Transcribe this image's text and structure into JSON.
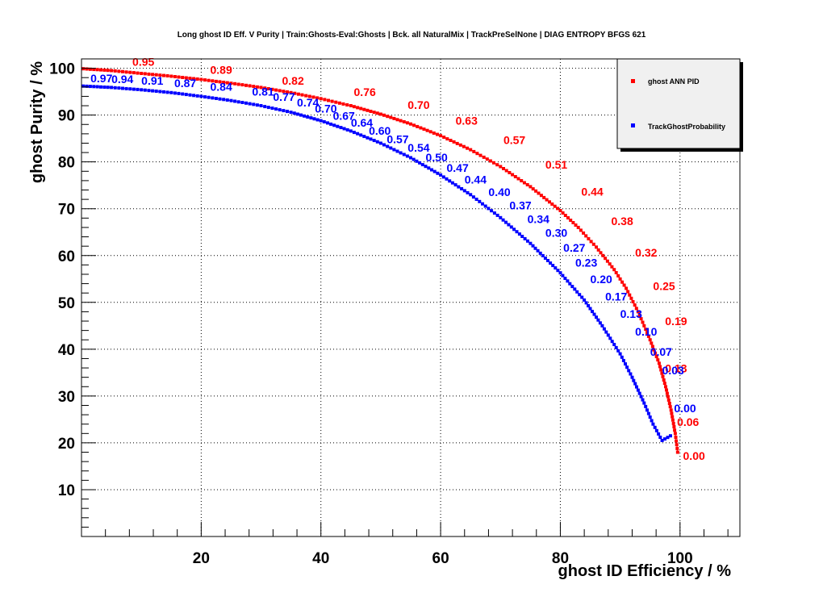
{
  "chart_data": {
    "type": "line",
    "title": "Long ghost ID Eff. V Purity | Train:Ghosts-Eval:Ghosts | Bck. all NaturalMix | TrackPreSelNone | DIAG ENTROPY BFGS 621",
    "xlabel": "ghost ID Efficiency / %",
    "ylabel": "ghost Purity / %",
    "xlim": [
      0,
      110
    ],
    "ylim": [
      0,
      102
    ],
    "xticks": [
      20,
      40,
      60,
      80,
      100
    ],
    "yticks": [
      10,
      20,
      30,
      40,
      50,
      60,
      70,
      80,
      90,
      100
    ],
    "grid": true,
    "legend_position": "top-right",
    "series": [
      {
        "name": "ghost ANN PID",
        "color": "#ff0000",
        "points": [
          [
            0.3,
            99.9
          ],
          [
            5,
            99.5
          ],
          [
            10,
            98.9
          ],
          [
            15,
            98.3
          ],
          [
            20,
            97.6
          ],
          [
            25,
            96.8
          ],
          [
            30,
            95.9
          ],
          [
            35,
            94.8
          ],
          [
            40,
            93.5
          ],
          [
            45,
            92.0
          ],
          [
            50,
            90.2
          ],
          [
            55,
            88.1
          ],
          [
            60,
            85.6
          ],
          [
            65,
            82.6
          ],
          [
            70,
            79.0
          ],
          [
            75,
            74.7
          ],
          [
            80,
            69.6
          ],
          [
            83,
            66.0
          ],
          [
            86,
            61.8
          ],
          [
            89,
            57.0
          ],
          [
            91,
            53.0
          ],
          [
            93,
            48.0
          ],
          [
            95,
            42.0
          ],
          [
            96.5,
            37.0
          ],
          [
            97.6,
            32.0
          ],
          [
            98.5,
            27.0
          ],
          [
            99.2,
            22.0
          ],
          [
            99.6,
            18.0
          ]
        ],
        "labels": [
          {
            "x": 8.5,
            "y": 100.5,
            "text": "0.95"
          },
          {
            "x": 21.5,
            "y": 98.8,
            "text": "0.89"
          },
          {
            "x": 33.5,
            "y": 96.5,
            "text": "0.82"
          },
          {
            "x": 45.5,
            "y": 94.1,
            "text": "0.76"
          },
          {
            "x": 54.5,
            "y": 91.3,
            "text": "0.70"
          },
          {
            "x": 62.5,
            "y": 88.0,
            "text": "0.63"
          },
          {
            "x": 70.5,
            "y": 83.8,
            "text": "0.57"
          },
          {
            "x": 77.5,
            "y": 78.6,
            "text": "0.51"
          },
          {
            "x": 83.5,
            "y": 72.8,
            "text": "0.44"
          },
          {
            "x": 88.5,
            "y": 66.5,
            "text": "0.38"
          },
          {
            "x": 92.5,
            "y": 59.8,
            "text": "0.32"
          },
          {
            "x": 95.5,
            "y": 52.6,
            "text": "0.25"
          },
          {
            "x": 97.5,
            "y": 45.1,
            "text": "0.19"
          },
          {
            "x": 97.5,
            "y": 35.1,
            "text": "0.13"
          },
          {
            "x": 99.5,
            "y": 23.6,
            "text": "0.06"
          },
          {
            "x": 100.5,
            "y": 16.4,
            "text": "0.00"
          }
        ]
      },
      {
        "name": "TrackGhostProbability",
        "color": "#0000ff",
        "points": [
          [
            0.3,
            96.2
          ],
          [
            5,
            95.9
          ],
          [
            10,
            95.4
          ],
          [
            15,
            94.8
          ],
          [
            20,
            94.0
          ],
          [
            25,
            93.1
          ],
          [
            30,
            92.0
          ],
          [
            35,
            90.6
          ],
          [
            40,
            88.8
          ],
          [
            45,
            86.6
          ],
          [
            50,
            84.0
          ],
          [
            55,
            80.9
          ],
          [
            60,
            77.2
          ],
          [
            65,
            73.0
          ],
          [
            70,
            68.1
          ],
          [
            75,
            62.6
          ],
          [
            80,
            56.3
          ],
          [
            84,
            50.5
          ],
          [
            87,
            45.0
          ],
          [
            90,
            39.0
          ],
          [
            92,
            34.0
          ],
          [
            94,
            28.5
          ],
          [
            95.5,
            24.0
          ],
          [
            97,
            20.5
          ],
          [
            98.4,
            21.5
          ]
        ],
        "labels": [
          {
            "x": 1.5,
            "y": 97.0,
            "text": "0.97"
          },
          {
            "x": 5.0,
            "y": 96.8,
            "text": "0.94"
          },
          {
            "x": 10.0,
            "y": 96.5,
            "text": "0.91"
          },
          {
            "x": 15.5,
            "y": 96.0,
            "text": "0.87"
          },
          {
            "x": 21.5,
            "y": 95.2,
            "text": "0.84"
          },
          {
            "x": 28.5,
            "y": 94.2,
            "text": "0.81"
          },
          {
            "x": 32.0,
            "y": 93.0,
            "text": "0.77"
          },
          {
            "x": 36.0,
            "y": 91.8,
            "text": "0.74"
          },
          {
            "x": 39.0,
            "y": 90.5,
            "text": "0.70"
          },
          {
            "x": 42.0,
            "y": 89.0,
            "text": "0.67"
          },
          {
            "x": 45.0,
            "y": 87.5,
            "text": "0.64"
          },
          {
            "x": 48.0,
            "y": 85.8,
            "text": "0.60"
          },
          {
            "x": 51.0,
            "y": 84.0,
            "text": "0.57"
          },
          {
            "x": 54.5,
            "y": 82.2,
            "text": "0.54"
          },
          {
            "x": 57.5,
            "y": 80.1,
            "text": "0.50"
          },
          {
            "x": 61.0,
            "y": 77.9,
            "text": "0.47"
          },
          {
            "x": 64.0,
            "y": 75.4,
            "text": "0.44"
          },
          {
            "x": 68.0,
            "y": 72.7,
            "text": "0.40"
          },
          {
            "x": 71.5,
            "y": 69.9,
            "text": "0.37"
          },
          {
            "x": 74.5,
            "y": 66.9,
            "text": "0.34"
          },
          {
            "x": 77.5,
            "y": 64.0,
            "text": "0.30"
          },
          {
            "x": 80.5,
            "y": 60.8,
            "text": "0.27"
          },
          {
            "x": 82.5,
            "y": 57.6,
            "text": "0.23"
          },
          {
            "x": 85.0,
            "y": 54.1,
            "text": "0.20"
          },
          {
            "x": 87.5,
            "y": 50.4,
            "text": "0.17"
          },
          {
            "x": 90.0,
            "y": 46.7,
            "text": "0.13"
          },
          {
            "x": 92.5,
            "y": 42.9,
            "text": "0.10"
          },
          {
            "x": 95.0,
            "y": 38.6,
            "text": "0.07"
          },
          {
            "x": 97.0,
            "y": 34.6,
            "text": "0.03"
          },
          {
            "x": 99.0,
            "y": 26.5,
            "text": "0.00"
          }
        ]
      }
    ]
  }
}
